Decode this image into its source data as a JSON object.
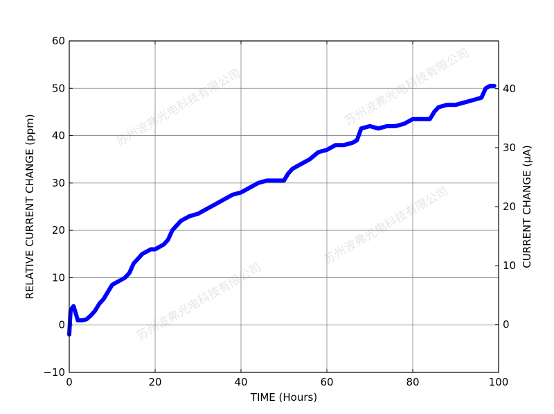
{
  "watermark": "苏州波弗光电科技有限公司",
  "chart_data": {
    "type": "line",
    "title": "",
    "xlabel": "TIME (Hours)",
    "ylabel": "RELATIVE CURRENT CHANGE (ppm)",
    "ylabel_right": "CURRENT CHANGE (µA)",
    "xlim": [
      0,
      100
    ],
    "ylim": [
      -10,
      60
    ],
    "ylim_right": [
      -8.1,
      48.1
    ],
    "xticks": [
      0,
      20,
      40,
      60,
      80,
      100
    ],
    "yticks": [
      -10,
      0,
      10,
      20,
      30,
      40,
      50,
      60
    ],
    "yticks_right": [
      0,
      10,
      20,
      30,
      40
    ],
    "grid": true,
    "line_color": "#0000ff",
    "series": [
      {
        "x": [
          0,
          0.3,
          0.6,
          1,
          1.5,
          2,
          3,
          4,
          5,
          6,
          7,
          8,
          9,
          10,
          11,
          12,
          13,
          14,
          15,
          16,
          17,
          18,
          19,
          20,
          21,
          22,
          23,
          24,
          25,
          26,
          27,
          28,
          30,
          32,
          34,
          36,
          38,
          40,
          42,
          44,
          46,
          48,
          50,
          51,
          52,
          54,
          56,
          58,
          60,
          62,
          64,
          66,
          67,
          68,
          70,
          72,
          74,
          76,
          78,
          80,
          82,
          84,
          85,
          86,
          88,
          90,
          92,
          94,
          96,
          97,
          98,
          99
        ],
        "y": [
          -2,
          3,
          3.5,
          4,
          2.5,
          1,
          1,
          1.2,
          2,
          3,
          4.5,
          5.5,
          7,
          8.5,
          9,
          9.5,
          10,
          11,
          13,
          14,
          15,
          15.5,
          16,
          16,
          16.5,
          17,
          18,
          20,
          21,
          22,
          22.5,
          23,
          23.5,
          24.5,
          25.5,
          26.5,
          27.5,
          28,
          29,
          30,
          30.5,
          30.5,
          30.5,
          32,
          33,
          34,
          35,
          36.5,
          37,
          38,
          38,
          38.5,
          39,
          41.5,
          42,
          41.5,
          42,
          42,
          42.5,
          43.5,
          43.5,
          43.5,
          45,
          46,
          46.5,
          46.5,
          47,
          47.5,
          48,
          50,
          50.5,
          50.5
        ]
      }
    ]
  }
}
